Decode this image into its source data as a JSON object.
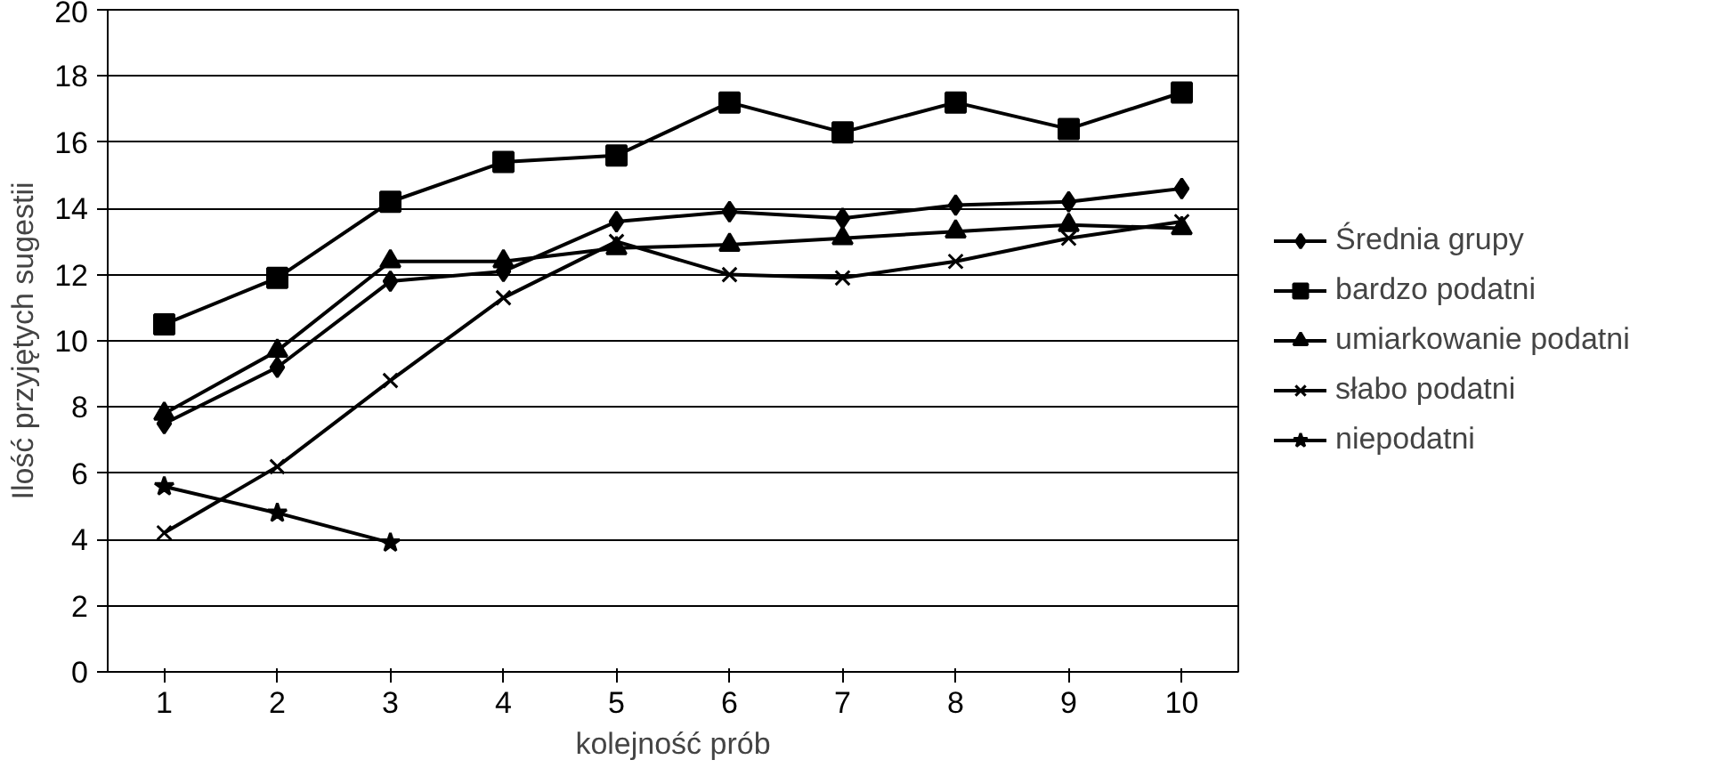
{
  "chart_data": {
    "type": "line",
    "xlabel": "kolejność prób",
    "ylabel": "Ilość przyjętych sugestii",
    "categories": [
      "1",
      "2",
      "3",
      "4",
      "5",
      "6",
      "7",
      "8",
      "9",
      "10"
    ],
    "ylim": [
      0,
      20
    ],
    "yticks": [
      0,
      2,
      4,
      6,
      8,
      10,
      12,
      14,
      16,
      18,
      20
    ],
    "grid": "y",
    "legend": "right",
    "series": [
      {
        "name": "Średnia grupy",
        "color": "#000000",
        "marker": "diamond",
        "values": [
          7.5,
          9.2,
          11.8,
          12.1,
          13.6,
          13.9,
          13.7,
          14.1,
          14.2,
          14.6
        ]
      },
      {
        "name": "bardzo podatni",
        "color": "#000000",
        "marker": "square",
        "values": [
          10.5,
          11.9,
          14.2,
          15.4,
          15.6,
          17.2,
          16.3,
          17.2,
          16.4,
          17.5
        ]
      },
      {
        "name": "umiarkowanie podatni",
        "color": "#000000",
        "marker": "triangle",
        "values": [
          7.8,
          9.7,
          12.4,
          12.4,
          12.8,
          12.9,
          13.1,
          13.3,
          13.5,
          13.4
        ]
      },
      {
        "name": "słabo podatni",
        "color": "#000000",
        "marker": "cross",
        "values": [
          4.2,
          6.2,
          8.8,
          11.3,
          13.0,
          12.0,
          11.9,
          12.4,
          13.1,
          13.6
        ]
      },
      {
        "name": "niepodatni",
        "color": "#000000",
        "marker": "star",
        "values": [
          5.6,
          4.8,
          3.9,
          null,
          null,
          null,
          null,
          null,
          null,
          null
        ]
      }
    ]
  }
}
